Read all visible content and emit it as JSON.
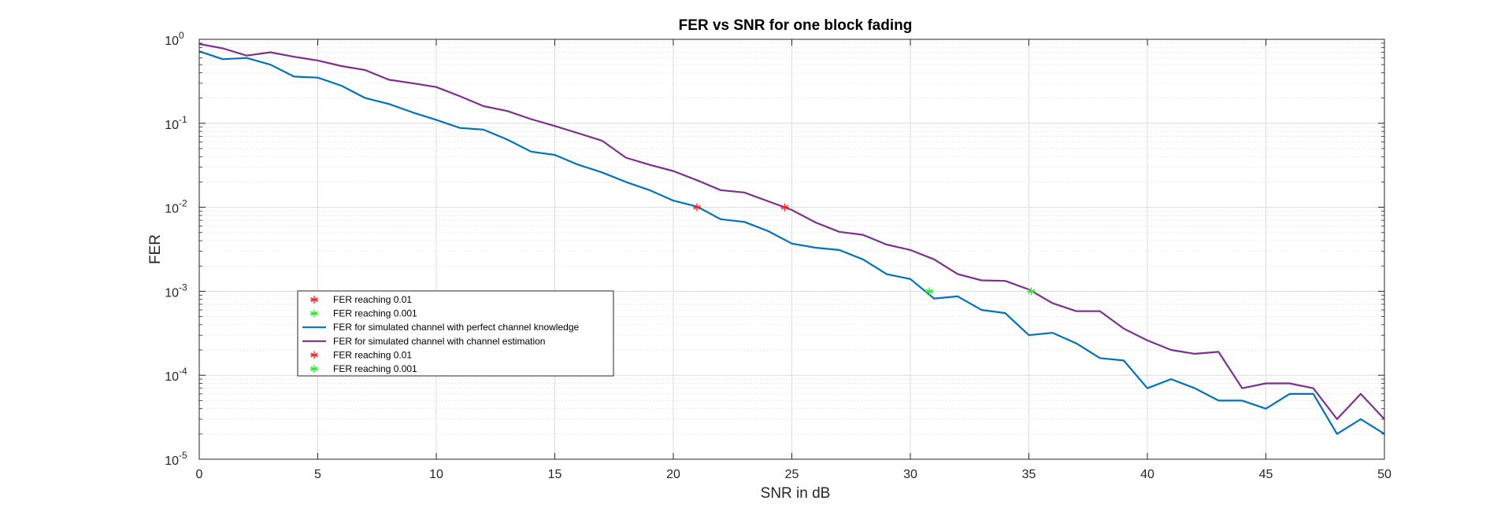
{
  "chart_data": {
    "type": "line",
    "title": "FER vs SNR for one block fading",
    "xlabel": "SNR in dB",
    "ylabel": "FER",
    "xlim": [
      0,
      50
    ],
    "ylim": [
      1e-05,
      1
    ],
    "yscale": "log",
    "grid": "on (major and minor)",
    "legend_position": "lower-left",
    "x_ticks": [
      "0",
      "5",
      "10",
      "15",
      "20",
      "25",
      "30",
      "35",
      "40",
      "45",
      "50"
    ],
    "y_ticks": [
      {
        "base": "10",
        "exp": "0"
      },
      {
        "base": "10",
        "exp": "-1"
      },
      {
        "base": "10",
        "exp": "-2"
      },
      {
        "base": "10",
        "exp": "-3"
      },
      {
        "base": "10",
        "exp": "-4"
      },
      {
        "base": "10",
        "exp": "-5"
      }
    ],
    "x": [
      0,
      1,
      2,
      3,
      4,
      5,
      6,
      7,
      8,
      9,
      10,
      11,
      12,
      13,
      14,
      15,
      16,
      17,
      18,
      19,
      20,
      21,
      22,
      23,
      24,
      25,
      26,
      27,
      28,
      29,
      30,
      31,
      32,
      33,
      34,
      35,
      36,
      37,
      38,
      39,
      40,
      41,
      42,
      43,
      44,
      45,
      46,
      47,
      48,
      49,
      50
    ],
    "series": [
      {
        "name": "FER for simulated channel with perfect channel knowledge",
        "color": "#0072BD",
        "values": [
          0.72,
          0.58,
          0.6,
          0.5,
          0.36,
          0.35,
          0.28,
          0.2,
          0.17,
          0.135,
          0.11,
          0.088,
          0.084,
          0.064,
          0.046,
          0.042,
          0.032,
          0.026,
          0.02,
          0.016,
          0.012,
          0.0102,
          0.0072,
          0.0067,
          0.0052,
          0.0037,
          0.0033,
          0.0031,
          0.0024,
          0.0016,
          0.0014,
          0.00082,
          0.00087,
          0.0006,
          0.00055,
          0.0003,
          0.00032,
          0.00024,
          0.00016,
          0.00015,
          7e-05,
          9e-05,
          7e-05,
          5e-05,
          5e-05,
          4e-05,
          6e-05,
          6e-05,
          2e-05,
          3e-05,
          2e-05
        ]
      },
      {
        "name": "FER for simulated channel with channel estimation",
        "color": "#7E2F8E",
        "values": [
          0.88,
          0.78,
          0.64,
          0.7,
          0.62,
          0.56,
          0.48,
          0.43,
          0.33,
          0.3,
          0.27,
          0.21,
          0.16,
          0.14,
          0.112,
          0.093,
          0.076,
          0.062,
          0.039,
          0.032,
          0.027,
          0.021,
          0.016,
          0.015,
          0.0118,
          0.0093,
          0.0066,
          0.0051,
          0.0047,
          0.0036,
          0.0031,
          0.0024,
          0.0016,
          0.00135,
          0.00133,
          0.00105,
          0.00072,
          0.00058,
          0.00058,
          0.00036,
          0.00026,
          0.0002,
          0.00018,
          0.00019,
          7e-05,
          8e-05,
          8e-05,
          7e-05,
          3e-05,
          6e-05,
          3e-05
        ]
      }
    ],
    "markers": [
      {
        "label": "FER reaching 0.01",
        "color": "#FF2020",
        "points": [
          [
            21.0,
            0.01
          ],
          [
            24.7,
            0.01
          ]
        ]
      },
      {
        "label": "FER reaching 0.001",
        "color": "#33E533",
        "points": [
          [
            30.8,
            0.001
          ],
          [
            35.1,
            0.001
          ]
        ]
      }
    ],
    "legend": [
      {
        "kind": "marker",
        "color": "#FF2020",
        "label": "FER reaching 0.01"
      },
      {
        "kind": "marker",
        "color": "#33E533",
        "label": "FER reaching 0.001"
      },
      {
        "kind": "line",
        "color": "#0072BD",
        "label": "FER for simulated channel with perfect channel knowledge"
      },
      {
        "kind": "line",
        "color": "#7E2F8E",
        "label": "FER for simulated channel with channel estimation"
      },
      {
        "kind": "marker",
        "color": "#FF2020",
        "label": "FER reaching 0.01"
      },
      {
        "kind": "marker",
        "color": "#33E533",
        "label": "FER reaching 0.001"
      }
    ]
  }
}
